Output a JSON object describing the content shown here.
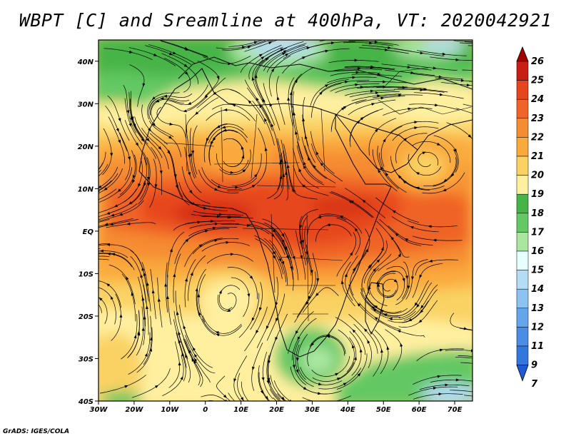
{
  "title": "WBPT [C] and Sreamline at 400hPa, VT: 2020042921",
  "credit": "GrADS: IGES/COLA",
  "map": {
    "lon_range": [
      -30,
      75
    ],
    "lat_range": [
      -40,
      45
    ],
    "lon_ticks": [
      {
        "value": -30,
        "label": "30W"
      },
      {
        "value": -20,
        "label": "20W"
      },
      {
        "value": -10,
        "label": "10W"
      },
      {
        "value": 0,
        "label": "0"
      },
      {
        "value": 10,
        "label": "10E"
      },
      {
        "value": 20,
        "label": "20E"
      },
      {
        "value": 30,
        "label": "30E"
      },
      {
        "value": 40,
        "label": "40E"
      },
      {
        "value": 50,
        "label": "50E"
      },
      {
        "value": 60,
        "label": "60E"
      },
      {
        "value": 70,
        "label": "70E"
      }
    ],
    "lat_ticks": [
      {
        "value": 40,
        "label": "40N"
      },
      {
        "value": 30,
        "label": "30N"
      },
      {
        "value": 20,
        "label": "20N"
      },
      {
        "value": 10,
        "label": "10N"
      },
      {
        "value": 0,
        "label": "EQ"
      },
      {
        "value": -10,
        "label": "10S"
      },
      {
        "value": -20,
        "label": "20S"
      },
      {
        "value": -30,
        "label": "30S"
      },
      {
        "value": -40,
        "label": "40S"
      }
    ]
  },
  "colorbar": {
    "levels": [
      {
        "label": "26",
        "color": "#a50000"
      },
      {
        "label": "25",
        "color": "#c81e14"
      },
      {
        "label": "24",
        "color": "#e6461e"
      },
      {
        "label": "23",
        "color": "#f06428"
      },
      {
        "label": "22",
        "color": "#f58c32"
      },
      {
        "label": "21",
        "color": "#faaa3c"
      },
      {
        "label": "20",
        "color": "#fad264"
      },
      {
        "label": "19",
        "color": "#fff0a0"
      },
      {
        "label": "18",
        "color": "#46b446"
      },
      {
        "label": "17",
        "color": "#64c864"
      },
      {
        "label": "16",
        "color": "#aae6a0"
      },
      {
        "label": "15",
        "color": "#e6ffff"
      },
      {
        "label": "14",
        "color": "#b4dcf5"
      },
      {
        "label": "13",
        "color": "#8cc3f0"
      },
      {
        "label": "12",
        "color": "#64a5eb"
      },
      {
        "label": "11",
        "color": "#4b8ce6"
      },
      {
        "label": "9",
        "color": "#3278dc"
      },
      {
        "label": "7",
        "color": "#1e5ad2"
      }
    ]
  },
  "field_features": [
    {
      "name": "northern-green-band",
      "level": 17,
      "lon": [
        -30,
        75
      ],
      "lat": [
        33,
        45
      ]
    },
    {
      "name": "north-blue-patch",
      "level": 14,
      "lon": [
        12,
        40
      ],
      "lat": [
        41,
        45
      ]
    },
    {
      "name": "equatorial-warm-band",
      "level": 23,
      "lon": [
        -30,
        75
      ],
      "lat": [
        -8,
        12
      ]
    },
    {
      "name": "south-atlantic-anticyclone",
      "level": 19,
      "lon": [
        -10,
        20
      ],
      "lat": [
        -28,
        -12
      ]
    },
    {
      "name": "south-africa-low",
      "level": 17,
      "lon": [
        20,
        40
      ],
      "lat": [
        -37,
        -25
      ]
    },
    {
      "name": "southern-green-band",
      "level": 17,
      "lon": [
        35,
        75
      ],
      "lat": [
        -40,
        -30
      ]
    },
    {
      "name": "arabian-sea-anticyclone",
      "level": 21,
      "lon": [
        55,
        75
      ],
      "lat": [
        10,
        22
      ]
    }
  ]
}
